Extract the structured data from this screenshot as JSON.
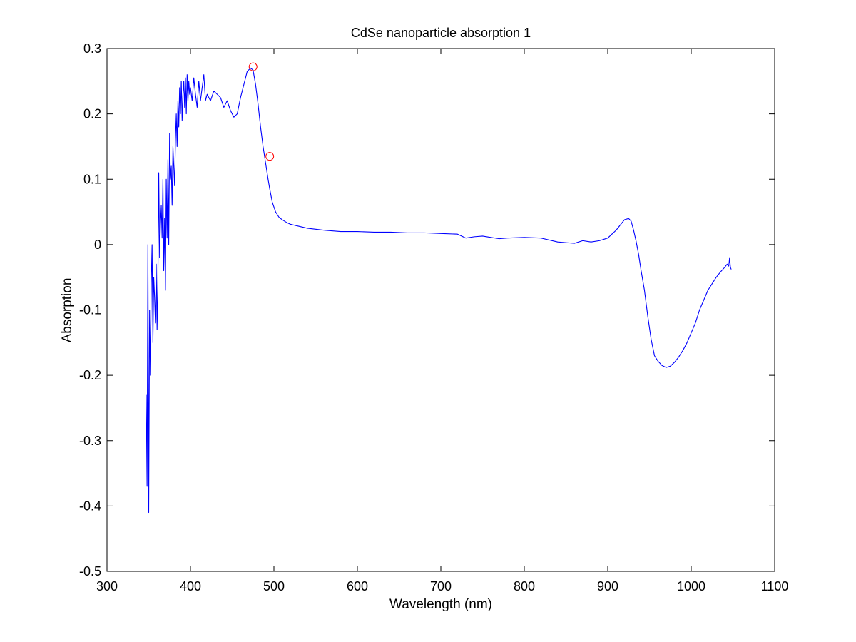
{
  "chart_data": {
    "type": "line",
    "title": "CdSe nanoparticle absorption 1",
    "xlabel": "Wavelength (nm)",
    "ylabel": "Absorption",
    "xlim": [
      300,
      1100
    ],
    "ylim": [
      -0.5,
      0.3
    ],
    "xticks": [
      300,
      400,
      500,
      600,
      700,
      800,
      900,
      1000,
      1100
    ],
    "yticks": [
      -0.5,
      -0.4,
      -0.3,
      -0.2,
      -0.1,
      0,
      0.1,
      0.2,
      0.3
    ],
    "xtick_labels": [
      "300",
      "400",
      "500",
      "600",
      "700",
      "800",
      "900",
      "1000",
      "1100"
    ],
    "ytick_labels": [
      "-0.5",
      "-0.4",
      "-0.3",
      "-0.2",
      "-0.1",
      "0",
      "0.1",
      "0.2",
      "0.3"
    ],
    "grid": false,
    "colors": {
      "line": "#0000ff",
      "marker": "#ff0000",
      "axes": "#000000"
    },
    "series": [
      {
        "x": [
          347,
          348,
          349,
          350,
          351,
          352,
          353,
          354,
          355,
          356,
          357,
          358,
          359,
          360,
          361,
          362,
          363,
          364,
          365,
          366,
          367,
          368,
          369,
          370,
          371,
          372,
          373,
          374,
          375,
          376,
          377,
          378,
          379,
          380,
          381,
          382,
          383,
          384,
          385,
          386,
          387,
          388,
          389,
          390,
          391,
          392,
          393,
          394,
          395,
          396,
          397,
          398,
          399,
          400,
          402,
          404,
          406,
          408,
          410,
          412,
          414,
          416,
          418,
          420,
          424,
          428,
          432,
          436,
          440,
          444,
          448,
          452,
          456,
          460,
          464,
          468,
          472,
          475,
          478,
          481,
          484,
          487,
          490,
          493,
          495,
          498,
          502,
          506,
          510,
          515,
          520,
          530,
          540,
          560,
          580,
          600,
          620,
          640,
          660,
          680,
          700,
          720,
          730,
          740,
          750,
          760,
          770,
          780,
          800,
          820,
          840,
          850,
          860,
          870,
          880,
          890,
          900,
          905,
          910,
          915,
          920,
          925,
          928,
          931,
          934,
          937,
          940,
          944,
          948,
          952,
          956,
          960,
          965,
          970,
          975,
          980,
          985,
          990,
          995,
          1000,
          1005,
          1010,
          1015,
          1020,
          1025,
          1030,
          1035,
          1040,
          1043,
          1045,
          1046,
          1047,
          1048
        ],
        "y": [
          -0.23,
          -0.37,
          0.0,
          -0.41,
          -0.1,
          -0.2,
          -0.06,
          0.0,
          -0.15,
          -0.05,
          -0.08,
          -0.12,
          -0.03,
          -0.13,
          -0.05,
          0.11,
          -0.02,
          0.03,
          0.06,
          0.01,
          0.1,
          -0.04,
          0.04,
          -0.07,
          0.1,
          0.01,
          0.13,
          0.0,
          0.17,
          0.1,
          0.12,
          0.06,
          0.15,
          0.12,
          0.09,
          0.16,
          0.2,
          0.15,
          0.22,
          0.18,
          0.24,
          0.2,
          0.25,
          0.19,
          0.23,
          0.25,
          0.21,
          0.255,
          0.2,
          0.26,
          0.22,
          0.25,
          0.23,
          0.24,
          0.22,
          0.255,
          0.23,
          0.21,
          0.25,
          0.22,
          0.24,
          0.26,
          0.22,
          0.23,
          0.22,
          0.235,
          0.23,
          0.225,
          0.21,
          0.22,
          0.205,
          0.195,
          0.2,
          0.225,
          0.245,
          0.265,
          0.27,
          0.267,
          0.245,
          0.215,
          0.18,
          0.15,
          0.125,
          0.1,
          0.085,
          0.065,
          0.05,
          0.042,
          0.038,
          0.034,
          0.031,
          0.028,
          0.025,
          0.022,
          0.02,
          0.02,
          0.019,
          0.019,
          0.018,
          0.018,
          0.017,
          0.016,
          0.01,
          0.012,
          0.013,
          0.011,
          0.009,
          0.01,
          0.011,
          0.01,
          0.004,
          0.003,
          0.002,
          0.006,
          0.004,
          0.006,
          0.01,
          0.016,
          0.022,
          0.03,
          0.038,
          0.04,
          0.036,
          0.022,
          0.005,
          -0.015,
          -0.04,
          -0.07,
          -0.11,
          -0.145,
          -0.17,
          -0.178,
          -0.185,
          -0.188,
          -0.186,
          -0.18,
          -0.172,
          -0.162,
          -0.15,
          -0.135,
          -0.12,
          -0.1,
          -0.085,
          -0.07,
          -0.06,
          -0.05,
          -0.042,
          -0.035,
          -0.03,
          -0.033,
          -0.02,
          -0.035,
          -0.038
        ]
      }
    ],
    "markers": [
      {
        "x": 475,
        "y": 0.272
      },
      {
        "x": 495,
        "y": 0.135
      }
    ]
  }
}
